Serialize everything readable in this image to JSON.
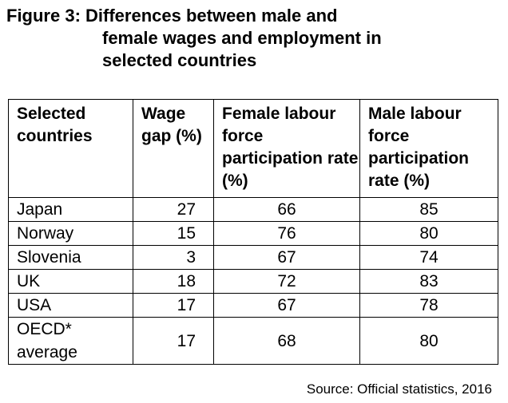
{
  "figure": {
    "title_line1": "Figure 3: Differences between male and",
    "title_line2": "female wages and employment in",
    "title_line3": "selected countries"
  },
  "table": {
    "headers": [
      "Selected countries",
      "Wage gap (%)",
      "Female labour force participation rate (%)",
      "Male labour force participation rate (%)"
    ],
    "rows": [
      {
        "country": "Japan",
        "wage_gap": "27",
        "female": "66",
        "male": "85"
      },
      {
        "country": "Norway",
        "wage_gap": "15",
        "female": "76",
        "male": "80"
      },
      {
        "country": "Slovenia",
        "wage_gap": "3",
        "female": "67",
        "male": "74"
      },
      {
        "country": "UK",
        "wage_gap": "18",
        "female": "72",
        "male": "83"
      },
      {
        "country": "USA",
        "wage_gap": "17",
        "female": "67",
        "male": "78"
      },
      {
        "country": "OECD* average",
        "wage_gap": "17",
        "female": "68",
        "male": "80"
      }
    ]
  },
  "source": "Source: Official statistics, 2016"
}
